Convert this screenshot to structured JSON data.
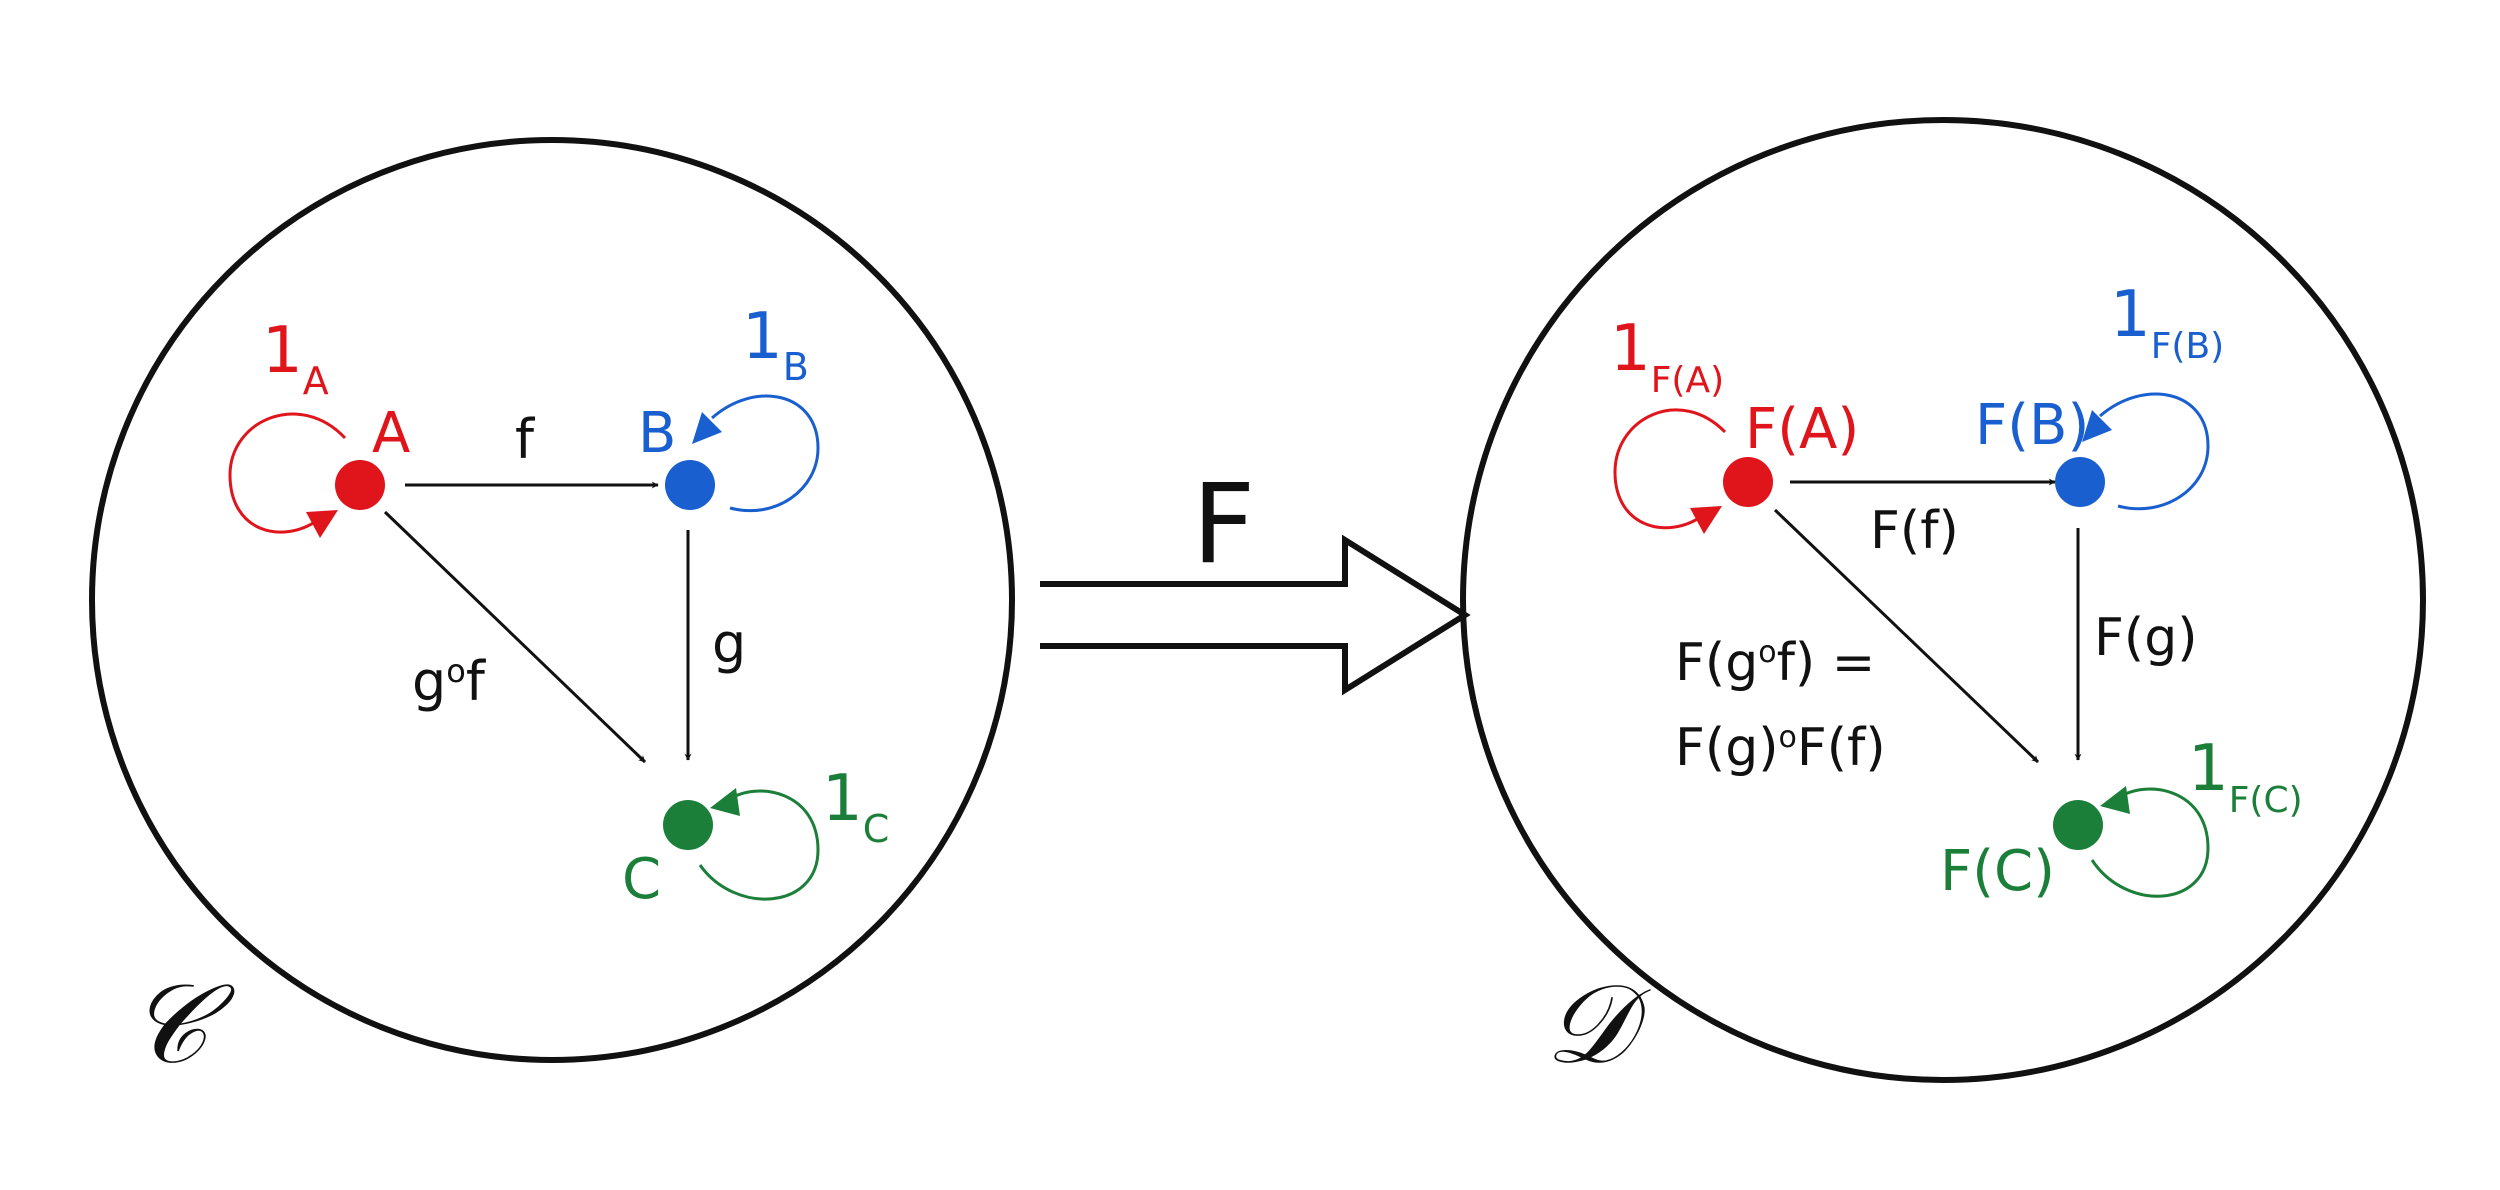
{
  "colors": {
    "a": "#e0151c",
    "b": "#1a5fcf",
    "c": "#1b7f3a",
    "ink": "#111111"
  },
  "left": {
    "category_label": "𝒞",
    "object_a": "A",
    "object_b": "B",
    "object_c": "C",
    "identity_a_main": "1",
    "identity_a_sub": "A",
    "identity_b_main": "1",
    "identity_b_sub": "B",
    "identity_c_main": "1",
    "identity_c_sub": "C",
    "morphism_f": "f",
    "morphism_g": "g",
    "composite_main": "g",
    "composite_circ": "o",
    "composite_tail": "f"
  },
  "functor": {
    "label": "F"
  },
  "right": {
    "category_label": "𝒟",
    "object_a": "F(A)",
    "object_b": "F(B)",
    "object_c": "F(C)",
    "identity_a_main": "1",
    "identity_a_sub": "F(A)",
    "identity_b_main": "1",
    "identity_b_sub": "F(B)",
    "identity_c_main": "1",
    "identity_c_sub": "F(C)",
    "morphism_f": "F(f)",
    "morphism_g": "F(g)",
    "composite_line1_a": "F(g",
    "composite_line1_circ": "o",
    "composite_line1_b": "f) =",
    "composite_line2_a": "F(g)",
    "composite_line2_circ": "o",
    "composite_line2_b": "F(f)"
  }
}
